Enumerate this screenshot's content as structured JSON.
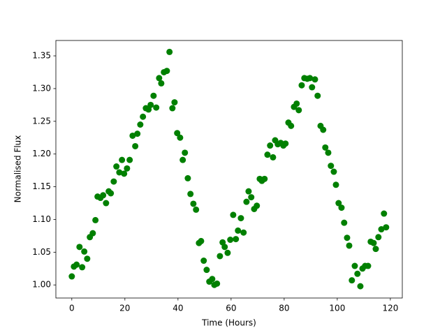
{
  "chart_data": {
    "type": "scatter",
    "x_label": "Time (Hours)",
    "y_label": "Normalised Flux",
    "color": "#008000",
    "xlim": [
      -6,
      124.5
    ],
    "ylim": [
      0.98,
      1.3735
    ],
    "xticks": [
      0,
      20,
      40,
      60,
      80,
      100,
      120
    ],
    "yticks": [
      {
        "value": 1.0,
        "label": "1.00"
      },
      {
        "value": 1.05,
        "label": "1.05"
      },
      {
        "value": 1.1,
        "label": "1.10"
      },
      {
        "value": 1.15,
        "label": "1.15"
      },
      {
        "value": 1.2,
        "label": "1.20"
      },
      {
        "value": 1.25,
        "label": "1.25"
      },
      {
        "value": 1.3,
        "label": "1.30"
      },
      {
        "value": 1.35,
        "label": "1.35"
      }
    ],
    "x": [
      0,
      0.8,
      1.8,
      2.9,
      3.9,
      4.7,
      5.8,
      6.8,
      7.9,
      8.9,
      9.7,
      10.8,
      11.8,
      12.9,
      13.9,
      14.7,
      15.8,
      16.8,
      17.9,
      18.9,
      19.7,
      20.8,
      21.8,
      22.9,
      23.9,
      24.7,
      25.8,
      26.8,
      27.9,
      28.9,
      29.7,
      30.8,
      31.8,
      32.9,
      33.7,
      34.7,
      35.8,
      36.8,
      37.9,
      38.7,
      39.7,
      40.8,
      41.8,
      42.6,
      43.7,
      44.7,
      45.8,
      46.8,
      47.9,
      48.7,
      49.7,
      50.8,
      51.8,
      52.9,
      53.7,
      54.7,
      55.8,
      56.8,
      57.6,
      58.7,
      59.7,
      60.8,
      61.8,
      62.6,
      63.7,
      64.7,
      65.8,
      66.6,
      67.6,
      68.7,
      69.7,
      70.8,
      71.6,
      72.6,
      73.7,
      74.7,
      75.8,
      76.6,
      77.6,
      78.7,
      79.7,
      80.5,
      81.6,
      82.6,
      83.7,
      84.7,
      85.5,
      86.6,
      87.6,
      88.7,
      89.7,
      90.5,
      91.6,
      92.6,
      93.7,
      94.7,
      95.5,
      96.6,
      97.6,
      98.7,
      99.5,
      100.5,
      101.6,
      102.6,
      103.7,
      104.5,
      105.5,
      106.6,
      107.6,
      108.7,
      109.5,
      110.5,
      111.6,
      112.6,
      113.7,
      114.5,
      115.5,
      116.6,
      117.6,
      118.4
    ],
    "values": [
      1.013,
      1.028,
      1.031,
      1.058,
      1.027,
      1.051,
      1.04,
      1.073,
      1.079,
      1.099,
      1.135,
      1.133,
      1.137,
      1.125,
      1.143,
      1.14,
      1.158,
      1.181,
      1.172,
      1.191,
      1.17,
      1.178,
      1.191,
      1.228,
      1.212,
      1.231,
      1.245,
      1.257,
      1.27,
      1.268,
      1.275,
      1.289,
      1.271,
      1.316,
      1.308,
      1.325,
      1.327,
      1.356,
      1.27,
      1.279,
      1.232,
      1.225,
      1.191,
      1.202,
      1.163,
      1.139,
      1.124,
      1.115,
      1.064,
      1.067,
      1.037,
      1.023,
      1.005,
      1.009,
      1.0,
      1.002,
      1.044,
      1.065,
      1.058,
      1.049,
      1.069,
      1.107,
      1.07,
      1.083,
      1.102,
      1.08,
      1.127,
      1.143,
      1.134,
      1.116,
      1.121,
      1.162,
      1.159,
      1.162,
      1.199,
      1.213,
      1.195,
      1.221,
      1.215,
      1.217,
      1.213,
      1.216,
      1.248,
      1.243,
      1.272,
      1.277,
      1.267,
      1.305,
      1.316,
      1.315,
      1.316,
      1.302,
      1.314,
      1.289,
      1.243,
      1.237,
      1.21,
      1.202,
      1.182,
      1.173,
      1.153,
      1.125,
      1.118,
      1.095,
      1.072,
      1.06,
      1.007,
      1.029,
      1.017,
      0.998,
      1.025,
      1.029,
      1.029,
      1.066,
      1.064,
      1.055,
      1.073,
      1.085,
      1.109,
      1.088
    ]
  }
}
